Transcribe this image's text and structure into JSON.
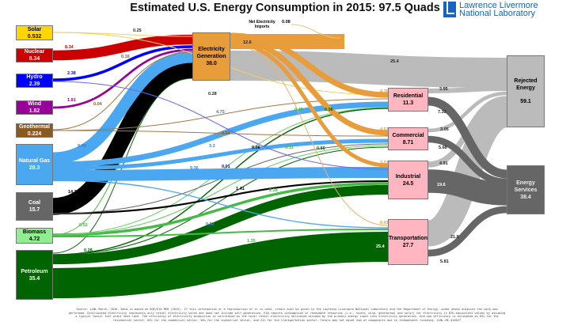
{
  "title": "Estimated U.S. Energy Consumption in 2015: 97.5 Quads",
  "logo": {
    "line1": "Lawrence Livermore",
    "line2": "National Laboratory"
  },
  "net_imports": {
    "label": "Net Electricity Imports",
    "value": "0.08"
  },
  "nodes": {
    "solar": {
      "name": "Solar",
      "value": "0.532",
      "color": "#FFD700"
    },
    "nuclear": {
      "name": "Nuclear",
      "value": "8.34",
      "color": "#CC0000"
    },
    "hydro": {
      "name": "Hydro",
      "value": "2.39",
      "color": "#0000FF"
    },
    "wind": {
      "name": "Wind",
      "value": "1.82",
      "color": "#990099"
    },
    "geothermal": {
      "name": "Geothermal",
      "value": "0.224",
      "color": "#8B5A1E"
    },
    "natural_gas": {
      "name": "Natural Gas",
      "value": "28.3",
      "color": "#4BA8F0"
    },
    "coal": {
      "name": "Coal",
      "value": "15.7",
      "color": "#666666"
    },
    "biomass": {
      "name": "Biomass",
      "value": "4.72",
      "color": "#90EE90"
    },
    "petroleum": {
      "name": "Petroleum",
      "value": "35.4",
      "color": "#006400"
    },
    "electricity": {
      "name": "Electricity Generation",
      "value": "38.0",
      "color": "#E89C3A"
    },
    "residential": {
      "name": "Residential",
      "value": "11.3",
      "color": "#FFB6C1"
    },
    "commercial": {
      "name": "Commercial",
      "value": "8.71",
      "color": "#FFB6C1"
    },
    "industrial": {
      "name": "Industrial",
      "value": "24.5",
      "color": "#FFB6C1"
    },
    "transportation": {
      "name": "Transportation",
      "value": "27.7",
      "color": "#FFB6C1"
    },
    "rejected": {
      "name": "Rejected Energy",
      "value": "59.1",
      "color": "#BBBBBB"
    },
    "services": {
      "name": "Energy Services",
      "value": "38.4",
      "color": "#666666"
    }
  },
  "flows": [
    {
      "from": "electricity",
      "to": "rejected",
      "value": 25.4,
      "label": "25.4",
      "color": "#BBBBBB",
      "label_color": "#222222"
    },
    {
      "from": "residential",
      "to": "rejected",
      "value": 3.95,
      "label": "3.95",
      "color": "#BBBBBB",
      "label_color": "#222222"
    },
    {
      "from": "commercial",
      "to": "rejected",
      "value": 3.05,
      "label": "3.05",
      "color": "#BBBBBB",
      "label_color": "#222222"
    },
    {
      "from": "industrial",
      "to": "rejected",
      "value": 4.91,
      "label": "4.91",
      "color": "#BBBBBB",
      "label_color": "#222222"
    },
    {
      "from": "transportation",
      "to": "rejected",
      "value": 21.9,
      "label": "21.9",
      "color": "#BBBBBB",
      "label_color": "#222222"
    },
    {
      "from": "residential",
      "to": "services",
      "value": 7.33,
      "label": "7.33",
      "color": "#666666",
      "label_color": "#222222"
    },
    {
      "from": "commercial",
      "to": "services",
      "value": 5.66,
      "label": "5.66",
      "color": "#666666",
      "label_color": "#222222"
    },
    {
      "from": "industrial",
      "to": "services",
      "value": 19.6,
      "label": "19.6",
      "color": "#666666",
      "label_color": "#ffffff"
    },
    {
      "from": "transportation",
      "to": "services",
      "value": 5.81,
      "label": "5.81",
      "color": "#666666",
      "label_color": "#222222"
    },
    {
      "from": "petroleum",
      "to": "transportation",
      "value": 25.4,
      "label": "25.4",
      "color": "#006400",
      "label_color": "#ffffff"
    },
    {
      "from": "petroleum",
      "to": "industrial",
      "value": 8.2,
      "label": "8.2",
      "color": "#006400",
      "label_color": "#006400"
    },
    {
      "from": "petroleum",
      "to": "electricity",
      "value": 0.28,
      "label": "0.28",
      "color": "#006400",
      "label_color": "#006400"
    },
    {
      "from": "petroleum",
      "to": "residential",
      "value": 0.98,
      "label": "0.98",
      "color": "#006400",
      "label_color": "#006400"
    },
    {
      "from": "petroleum",
      "to": "commercial",
      "value": 0.56,
      "label": "0.56",
      "color": "#006400",
      "label_color": "#006400"
    },
    {
      "from": "biomass",
      "to": "electricity",
      "value": 0.52,
      "label": "0.52",
      "color": "#44BB44",
      "label_color": "#44BB44"
    },
    {
      "from": "biomass",
      "to": "industrial",
      "value": 2.28,
      "label": "2.28",
      "color": "#44BB44",
      "label_color": "#44BB44"
    },
    {
      "from": "biomass",
      "to": "transportation",
      "value": 1.35,
      "label": "1.35",
      "color": "#44BB44",
      "label_color": "#44BB44"
    },
    {
      "from": "biomass",
      "to": "residential",
      "value": 0.45,
      "label": "0.45",
      "color": "#66CC66",
      "label_color": "#44BB44"
    },
    {
      "from": "biomass",
      "to": "commercial",
      "value": 0.13,
      "label": "0.13",
      "color": "#66CC66",
      "label_color": "#44BB44"
    },
    {
      "from": "coal",
      "to": "electricity",
      "value": 14.3,
      "label": "14.3",
      "color": "#000000",
      "label_color": "#000000"
    },
    {
      "from": "coal",
      "to": "industrial",
      "value": 1.41,
      "label": "1.41",
      "color": "#000000",
      "label_color": "#000000"
    },
    {
      "from": "coal",
      "to": "commercial",
      "value": 0.06,
      "label": "0.06",
      "color": "#666666",
      "label_color": "#000000"
    },
    {
      "from": "natural_gas",
      "to": "electricity",
      "value": 9.99,
      "label": "9.99",
      "color": "#4BA8F0",
      "label_color": "#3b7fd0"
    },
    {
      "from": "natural_gas",
      "to": "residential",
      "value": 4.75,
      "label": "4.75",
      "color": "#4BA8F0",
      "label_color": "#3b7fd0"
    },
    {
      "from": "natural_gas",
      "to": "commercial",
      "value": 3.3,
      "label": "3.3",
      "color": "#4BA8F0",
      "label_color": "#3b7fd0"
    },
    {
      "from": "natural_gas",
      "to": "industrial",
      "value": 9.36,
      "label": "9.36",
      "color": "#4BA8F0",
      "label_color": "#3b7fd0"
    },
    {
      "from": "natural_gas",
      "to": "transportation",
      "value": 0.92,
      "label": "0.92",
      "color": "#4BA8F0",
      "label_color": "#3b7fd0"
    },
    {
      "from": "geothermal",
      "to": "electricity",
      "value": 0.16,
      "label": "0.16",
      "color": "#A07848",
      "label_color": "#8B5A1E"
    },
    {
      "from": "geothermal",
      "to": "residential",
      "value": 0.04,
      "label": "0.04",
      "color": "#A07848",
      "label_color": "#8B5A1E"
    },
    {
      "from": "geothermal",
      "to": "commercial",
      "value": 0.02,
      "label": "0.02",
      "color": "#A07848",
      "label_color": "#8B5A1E"
    },
    {
      "from": "wind",
      "to": "electricity",
      "value": 1.81,
      "label": "1.81",
      "color": "#990099",
      "label_color": "#990099"
    },
    {
      "from": "hydro",
      "to": "electricity",
      "value": 2.38,
      "label": "2.38",
      "color": "#0000FF",
      "label_color": "#0000FF"
    },
    {
      "from": "hydro",
      "to": "industrial",
      "value": 0.01,
      "label": "0.01",
      "color": "#6666FF",
      "label_color": "#0000CC"
    },
    {
      "from": "nuclear",
      "to": "electricity",
      "value": 8.34,
      "label": "8.34",
      "color": "#CC0000",
      "label_color": "#CC0000"
    },
    {
      "from": "solar",
      "to": "electricity",
      "value": 0.25,
      "label": "0.25",
      "color": "#F0D060",
      "label_color": "#222222"
    },
    {
      "from": "solar",
      "to": "residential",
      "value": 0.28,
      "label": "0.28",
      "color": "#F0D060",
      "label_color": "#222222"
    },
    {
      "from": "electricity",
      "to": "residential",
      "value": 4.79,
      "label": "4.79",
      "color": "#E89C3A",
      "label_color": "#E89C3A"
    },
    {
      "from": "electricity",
      "to": "commercial",
      "value": 4.63,
      "label": "4.63",
      "color": "#E89C3A",
      "label_color": "#E89C3A"
    },
    {
      "from": "electricity",
      "to": "industrial",
      "value": 3.27,
      "label": "3.27",
      "color": "#E89C3A",
      "label_color": "#E89C3A"
    },
    {
      "from": "electricity",
      "to": "transportation",
      "value": 0.03,
      "label": "0.03",
      "color": "#F0B070",
      "label_color": "#E89C3A"
    }
  ],
  "electricity_delivered_label": "12.6",
  "footnote": "Source: LLNL March, 2016. Data is based on DOE/EIA MER (2015). If this information or a reproduction of it is used, credit must be given to the Lawrence Livermore National Laboratory and the Department of Energy, under whose auspices the work was performed. Distributed electricity represents only retail electricity sales and does not include self-generation. EIA reports consumption of renewable resources (i.e., hydro, wind, geothermal and solar) for electricity in BTU-equivalent values by assuming a typical fossil fuel plant heat rate. The efficiency of electricity production is calculated as the total retail electricity delivered divided by the primary energy input into electricity generation. End use efficiency is estimated as 65% for the residential sector, 65% for the commercial sector, 50% for the industrial sector, and 21% for the transportation sector. Totals may not equal sum of components due to independent rounding. LLNL-MI-410527"
}
